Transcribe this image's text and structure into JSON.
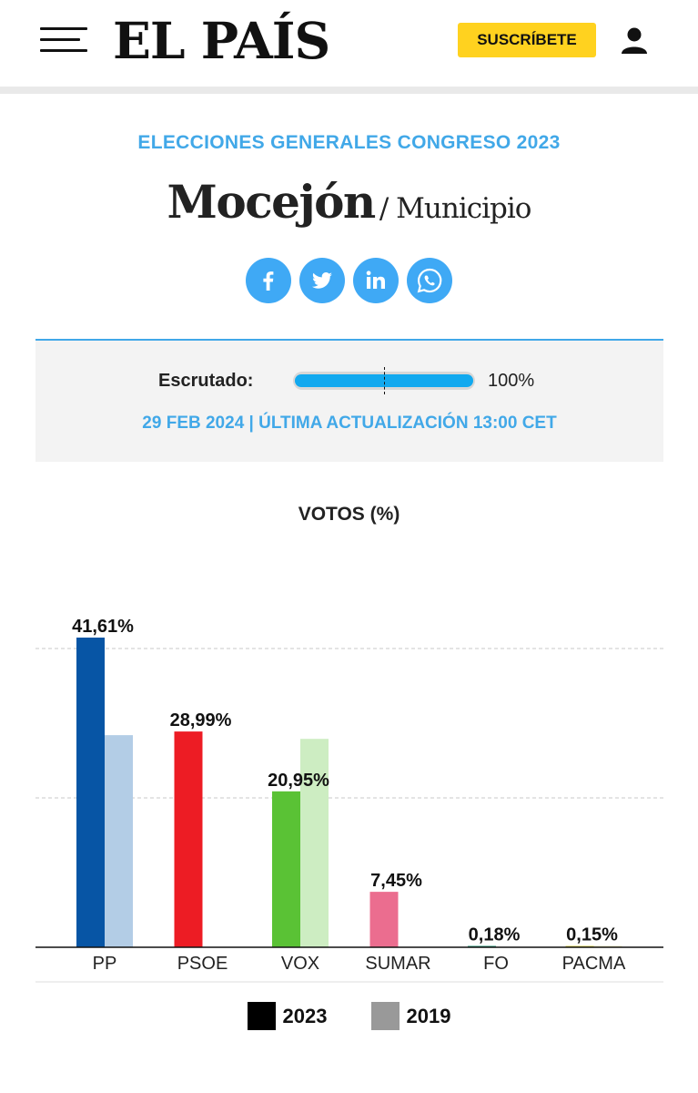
{
  "header": {
    "logo": "EL PAÍS",
    "subscribe_label": "SUSCRÍBETE"
  },
  "kicker": "ELECCIONES GENERALES CONGRESO 2023",
  "title": {
    "main": "Mocejón",
    "sub": "/ Municipio"
  },
  "social": [
    "facebook-icon",
    "twitter-icon",
    "linkedin-icon",
    "whatsapp-icon"
  ],
  "status": {
    "label": "Escrutado:",
    "percent_text": "100%",
    "percent_value": 100,
    "update": "29 FEB 2024 | ÚLTIMA ACTUALIZACIÓN 13:00 CET"
  },
  "colors": {
    "accent": "#41a8e8",
    "subscribe": "#ffd21f"
  },
  "chart_data": {
    "type": "bar",
    "title": "VOTOS (%)",
    "categories": [
      "PP",
      "PSOE",
      "VOX",
      "SUMAR",
      "FO",
      "PACMA"
    ],
    "series": [
      {
        "name": "2023",
        "values": [
          41.61,
          28.99,
          20.95,
          7.45,
          0.18,
          0.15
        ],
        "labels": [
          "41,61%",
          "28,99%",
          "20,95%",
          "7,45%",
          "0,18%",
          "0,15%"
        ]
      },
      {
        "name": "2019",
        "values": [
          28.5,
          null,
          28.0,
          null,
          null,
          0.1
        ]
      }
    ],
    "colors_2023": [
      "#0755a5",
      "#ed1c24",
      "#5ac235",
      "#eb6d8f",
      "#2a9a7a",
      "#d9d24a"
    ],
    "colors_2019": [
      "#b3cde6",
      "#f8b9bc",
      "#cdedc2",
      "#f7c8d4",
      "#bfe1d7",
      "#f2eebd"
    ],
    "ylim": [
      0,
      41.61
    ],
    "grid": true,
    "legend": "bottom"
  }
}
